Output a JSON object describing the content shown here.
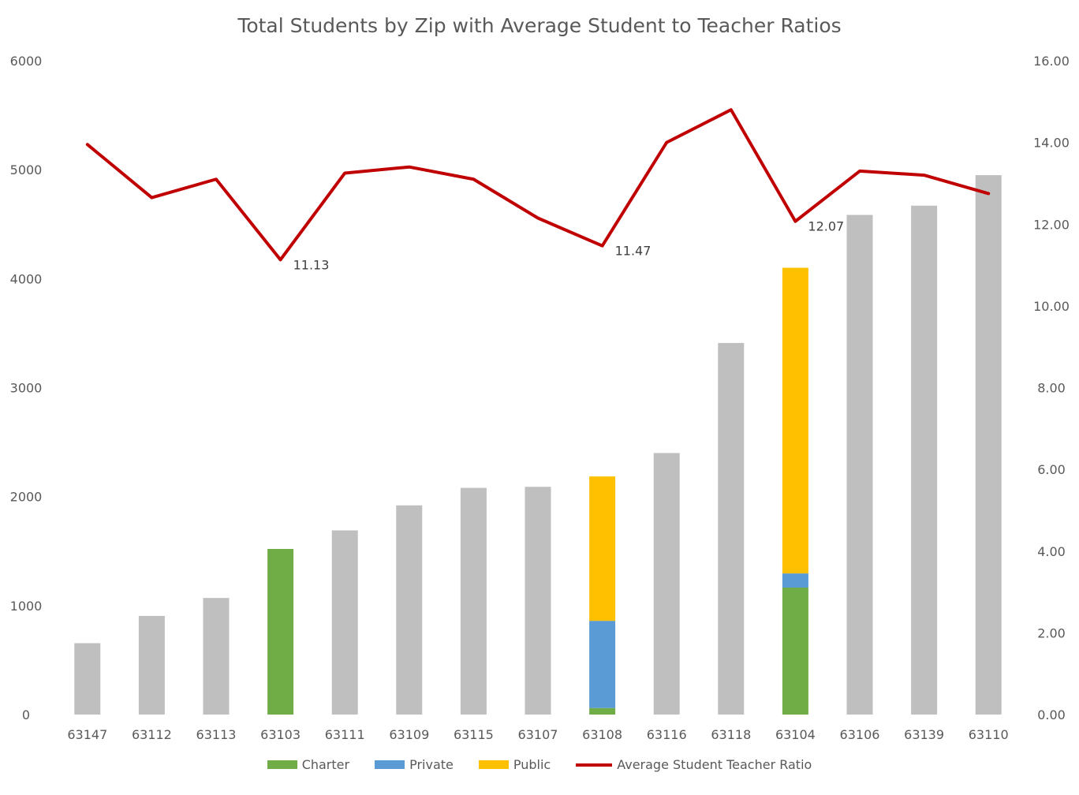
{
  "chart_data": {
    "type": "bar",
    "title": "Total Students by Zip with Average Student to Teacher Ratios",
    "categories": [
      "63147",
      "63112",
      "63113",
      "63103",
      "63111",
      "63109",
      "63115",
      "63107",
      "63108",
      "63116",
      "63118",
      "63104",
      "63106",
      "63139",
      "63110"
    ],
    "totals": [
      655,
      905,
      1070,
      1520,
      1690,
      1920,
      2080,
      2090,
      2185,
      2400,
      3410,
      4100,
      4585,
      4670,
      4950
    ],
    "breakdown_series": [
      {
        "name": "Charter",
        "color": "#70ad47",
        "values": [
          null,
          null,
          null,
          1520,
          null,
          null,
          null,
          null,
          60,
          null,
          null,
          1165,
          null,
          null,
          null
        ]
      },
      {
        "name": "Private",
        "color": "#5b9bd5",
        "values": [
          null,
          null,
          null,
          0,
          null,
          null,
          null,
          null,
          800,
          null,
          null,
          130,
          null,
          null,
          null
        ]
      },
      {
        "name": "Public",
        "color": "#ffc000",
        "values": [
          null,
          null,
          null,
          0,
          null,
          null,
          null,
          null,
          1325,
          null,
          null,
          2805,
          null,
          null,
          null
        ]
      }
    ],
    "total_color": "#bfbfbf",
    "line_series": {
      "name": "Average Student Teacher Ratio",
      "color": "#c00000",
      "values": [
        13.95,
        12.65,
        13.1,
        11.13,
        13.25,
        13.4,
        13.1,
        12.15,
        11.47,
        14.0,
        14.8,
        12.07,
        13.3,
        13.2,
        12.75
      ]
    },
    "data_labels": [
      {
        "index": 3,
        "text": "11.13"
      },
      {
        "index": 8,
        "text": "11.47"
      },
      {
        "index": 11,
        "text": "12.07"
      }
    ],
    "y_left": {
      "min": 0,
      "max": 6000,
      "ticks": [
        "0",
        "1000",
        "2000",
        "3000",
        "4000",
        "5000",
        "6000"
      ]
    },
    "y_right": {
      "min": 0,
      "max": 16,
      "ticks": [
        "0.00",
        "2.00",
        "4.00",
        "6.00",
        "8.00",
        "10.00",
        "12.00",
        "14.00",
        "16.00"
      ]
    },
    "legend": [
      {
        "label": "Charter",
        "color": "#70ad47",
        "kind": "box"
      },
      {
        "label": "Private",
        "color": "#5b9bd5",
        "kind": "box"
      },
      {
        "label": "Public",
        "color": "#ffc000",
        "kind": "box"
      },
      {
        "label": "Average Student Teacher Ratio",
        "color": "#c00000",
        "kind": "line"
      }
    ],
    "legend_position": "bottom",
    "grid": false
  }
}
